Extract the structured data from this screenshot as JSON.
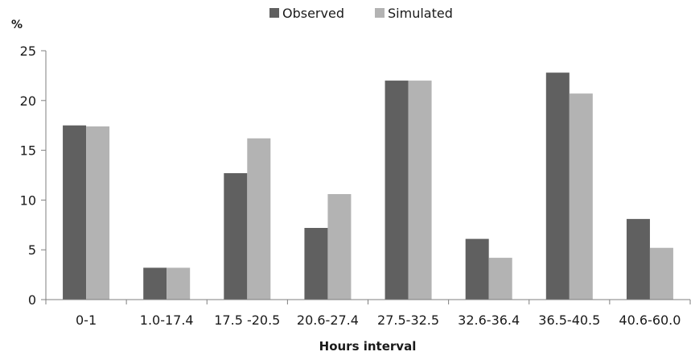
{
  "chart_data": {
    "type": "bar",
    "title": "",
    "xlabel": "Hours interval",
    "ylabel": "%",
    "ylim": [
      0,
      25
    ],
    "yticks": [
      0,
      5,
      10,
      15,
      20,
      25
    ],
    "grid": false,
    "legend_position": "top-center",
    "categories": [
      "0-1",
      "1.0-17.4",
      "17.5 -20.5",
      "20.6-27.4",
      "27.5-32.5",
      "32.6-36.4",
      "36.5-40.5",
      "40.6-60.0"
    ],
    "series": [
      {
        "name": "Observed",
        "color": "#606060",
        "values": [
          17.5,
          3.2,
          12.7,
          7.2,
          22.0,
          6.1,
          22.8,
          8.1
        ]
      },
      {
        "name": "Simulated",
        "color": "#b3b3b3",
        "values": [
          17.4,
          3.2,
          16.2,
          10.6,
          22.0,
          4.2,
          20.7,
          5.2
        ]
      }
    ]
  }
}
